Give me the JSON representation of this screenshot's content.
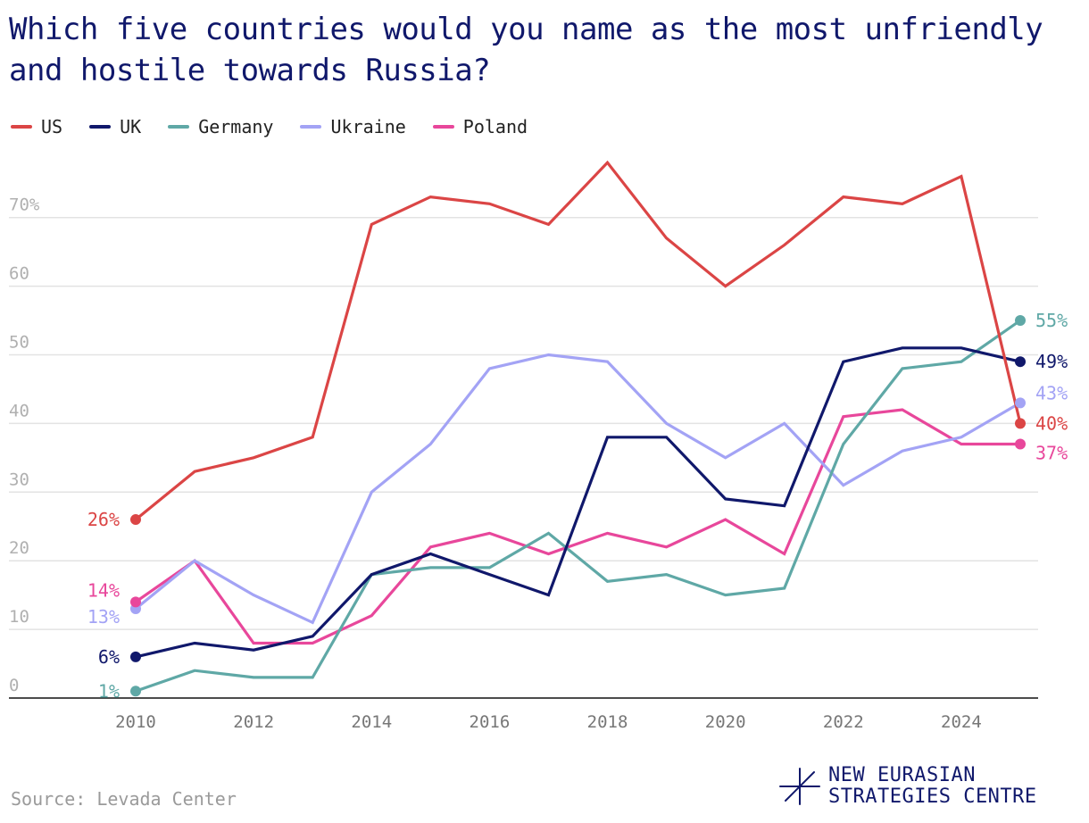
{
  "title": "Which five countries would you name as the most unfriendly and hostile towards Russia?",
  "source": "Source: Levada Center",
  "logo": {
    "line1": "NEW EURASIAN",
    "line2": "STRATEGIES CENTRE",
    "icon": "asterisk-star-icon"
  },
  "colors": {
    "title": "#10186b",
    "grid": "#e3e3e3",
    "axis": "#111111",
    "tick": "#b0b0b0",
    "xtick": "#777777"
  },
  "chart_data": {
    "type": "line",
    "title": "Which five countries would you name as the most unfriendly and hostile towards Russia?",
    "xlabel": "",
    "ylabel": "",
    "x": [
      2010,
      2011,
      2012,
      2013,
      2014,
      2015,
      2016,
      2017,
      2018,
      2019,
      2020,
      2021,
      2022,
      2023,
      2024,
      2025
    ],
    "xticks": [
      2010,
      2012,
      2014,
      2016,
      2018,
      2020,
      2022,
      2024
    ],
    "yticks": [
      {
        "value": 0,
        "label": "0"
      },
      {
        "value": 10,
        "label": "10"
      },
      {
        "value": 20,
        "label": "20"
      },
      {
        "value": 30,
        "label": "30"
      },
      {
        "value": 40,
        "label": "40"
      },
      {
        "value": 50,
        "label": "50"
      },
      {
        "value": 60,
        "label": "60"
      },
      {
        "value": 70,
        "label": "70%"
      }
    ],
    "ylim": [
      0,
      70
    ],
    "grid": true,
    "legend": "top-left",
    "series": [
      {
        "name": "US",
        "color": "#db4545",
        "values": [
          26,
          33,
          35,
          38,
          69,
          73,
          72,
          69,
          78,
          67,
          60,
          66,
          73,
          72,
          76,
          40
        ],
        "start_label": "26%",
        "end_label": "40%"
      },
      {
        "name": "UK",
        "color": "#10186b",
        "values": [
          6,
          8,
          7,
          9,
          18,
          21,
          18,
          15,
          38,
          38,
          29,
          28,
          49,
          51,
          51,
          49
        ],
        "start_label": "6%",
        "end_label": "49%"
      },
      {
        "name": "Germany",
        "color": "#5fa8a6",
        "values": [
          1,
          4,
          3,
          3,
          18,
          19,
          19,
          24,
          17,
          18,
          15,
          16,
          37,
          48,
          49,
          55
        ],
        "start_label": "1%",
        "end_label": "55%"
      },
      {
        "name": "Ukraine",
        "color": "#a3a3f5",
        "values": [
          13,
          20,
          15,
          11,
          30,
          37,
          48,
          50,
          49,
          40,
          35,
          40,
          31,
          36,
          38,
          43
        ],
        "start_label": "13%",
        "end_label": "43%"
      },
      {
        "name": "Poland",
        "color": "#e8479b",
        "values": [
          14,
          20,
          8,
          8,
          12,
          22,
          24,
          21,
          24,
          22,
          26,
          21,
          41,
          42,
          37,
          37
        ],
        "start_label": "14%",
        "end_label": "37%"
      }
    ]
  }
}
